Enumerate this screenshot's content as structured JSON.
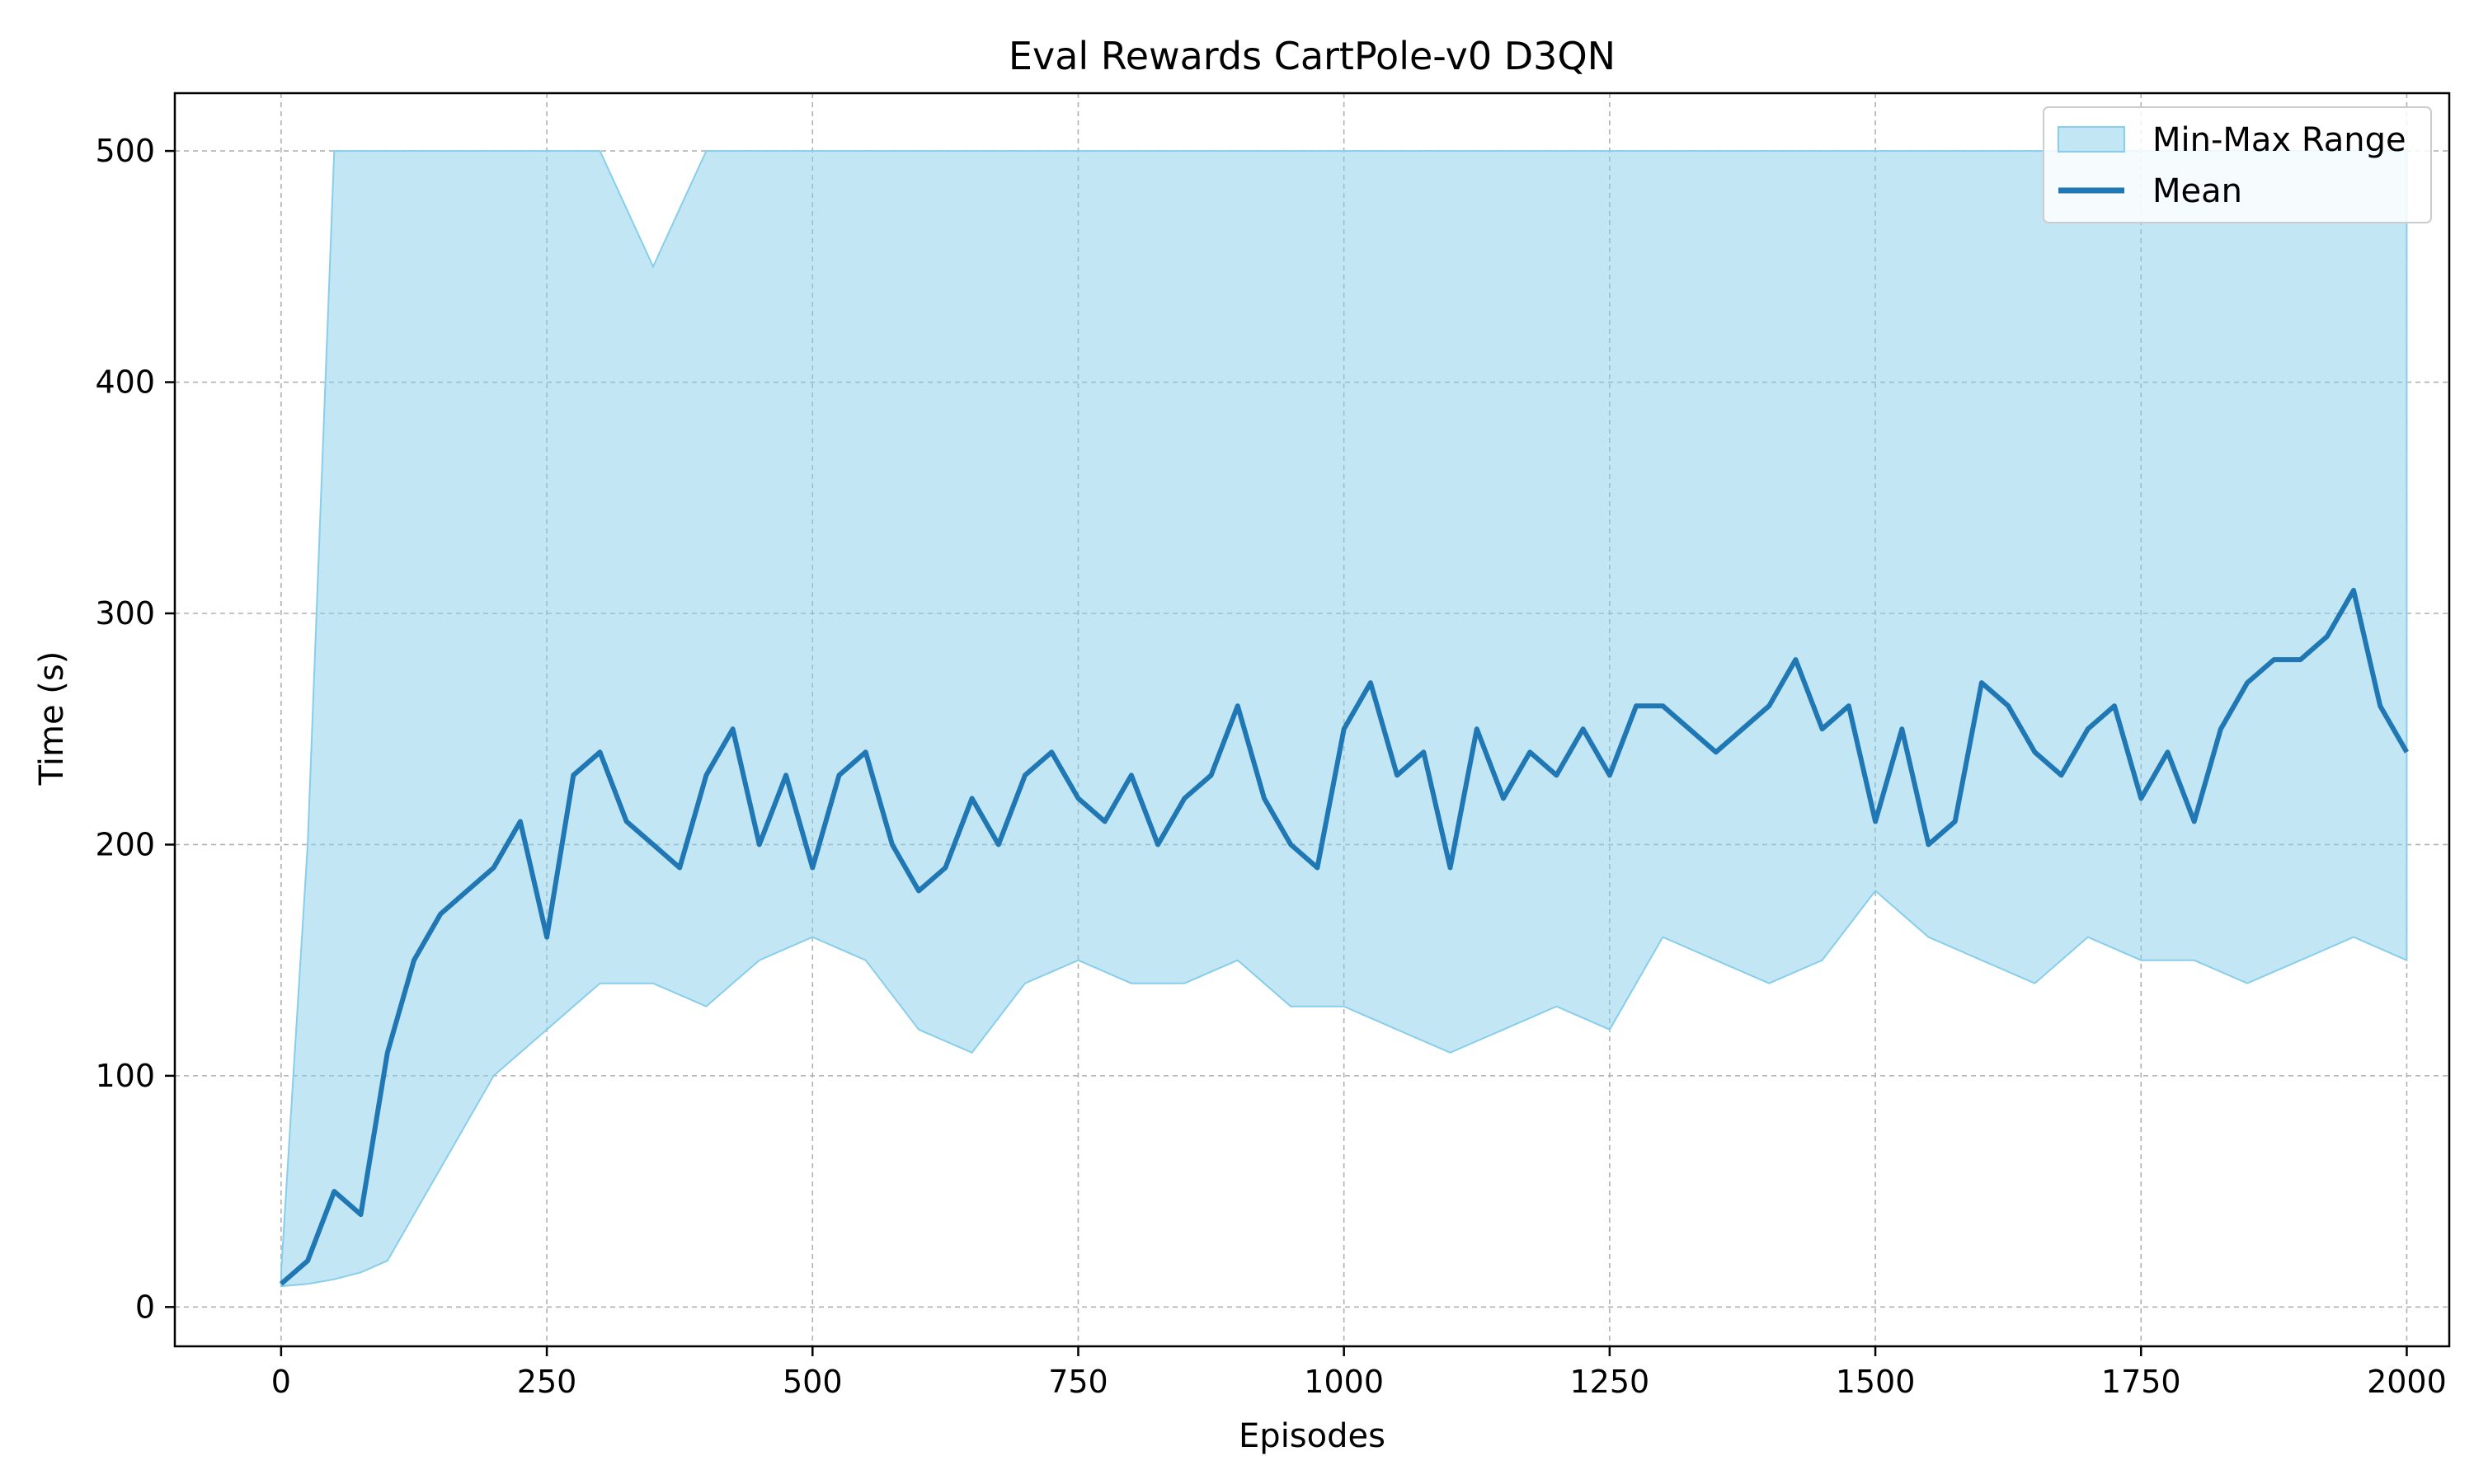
{
  "chart_data": {
    "type": "line",
    "title": "Eval Rewards CartPole-v0 D3QN",
    "xlabel": "Episodes",
    "ylabel": "Time (s)",
    "xlim": [
      -100,
      2040
    ],
    "ylim": [
      -17,
      525
    ],
    "xticks": [
      0,
      250,
      500,
      750,
      1000,
      1250,
      1500,
      1750,
      2000
    ],
    "yticks": [
      0,
      100,
      200,
      300,
      400,
      500
    ],
    "grid": true,
    "legend_position": "top-right",
    "colors": {
      "mean": "#1f77b4",
      "range_fill": "#87ceeb",
      "grid": "#b0b0b0"
    },
    "series": [
      {
        "name": "Min-Max Range",
        "kind": "band",
        "x": [
          0,
          25,
          50,
          75,
          100,
          125,
          150,
          175,
          200,
          250,
          300,
          350,
          400,
          450,
          500,
          550,
          600,
          650,
          700,
          750,
          800,
          850,
          900,
          950,
          1000,
          1050,
          1100,
          1150,
          1200,
          1250,
          1300,
          1350,
          1400,
          1450,
          1500,
          1550,
          1600,
          1650,
          1700,
          1750,
          1800,
          1850,
          1900,
          1950,
          2000
        ],
        "min": [
          9,
          10,
          12,
          15,
          20,
          40,
          60,
          80,
          100,
          120,
          140,
          140,
          130,
          150,
          160,
          150,
          120,
          110,
          140,
          150,
          140,
          140,
          150,
          130,
          130,
          120,
          110,
          120,
          130,
          120,
          160,
          150,
          140,
          150,
          180,
          160,
          150,
          140,
          160,
          150,
          150,
          140,
          150,
          160,
          150
        ],
        "max": [
          15,
          200,
          500,
          500,
          500,
          500,
          500,
          500,
          500,
          500,
          500,
          450,
          500,
          500,
          500,
          500,
          500,
          500,
          500,
          500,
          500,
          500,
          500,
          500,
          500,
          500,
          500,
          500,
          500,
          500,
          500,
          500,
          500,
          500,
          500,
          500,
          500,
          500,
          500,
          500,
          500,
          500,
          500,
          500,
          500
        ]
      },
      {
        "name": "Mean",
        "kind": "line",
        "x": [
          0,
          25,
          50,
          75,
          100,
          125,
          150,
          175,
          200,
          225,
          250,
          275,
          300,
          325,
          350,
          375,
          400,
          425,
          450,
          475,
          500,
          525,
          550,
          575,
          600,
          625,
          650,
          675,
          700,
          725,
          750,
          775,
          800,
          825,
          850,
          875,
          900,
          925,
          950,
          975,
          1000,
          1025,
          1050,
          1075,
          1100,
          1125,
          1150,
          1175,
          1200,
          1225,
          1250,
          1275,
          1300,
          1325,
          1350,
          1375,
          1400,
          1425,
          1450,
          1475,
          1500,
          1525,
          1550,
          1575,
          1600,
          1625,
          1650,
          1675,
          1700,
          1725,
          1750,
          1775,
          1800,
          1825,
          1850,
          1875,
          1900,
          1925,
          1950,
          1975,
          2000
        ],
        "y": [
          10,
          20,
          50,
          40,
          110,
          150,
          170,
          180,
          190,
          210,
          160,
          230,
          240,
          210,
          200,
          190,
          230,
          250,
          200,
          230,
          190,
          230,
          240,
          200,
          180,
          190,
          220,
          200,
          230,
          240,
          220,
          210,
          230,
          200,
          220,
          230,
          260,
          220,
          200,
          190,
          250,
          270,
          230,
          240,
          190,
          250,
          220,
          240,
          230,
          250,
          230,
          260,
          260,
          250,
          240,
          250,
          260,
          280,
          250,
          260,
          210,
          250,
          200,
          210,
          270,
          260,
          240,
          230,
          250,
          260,
          220,
          240,
          210,
          250,
          270,
          280,
          280,
          290,
          310,
          260,
          240
        ]
      }
    ]
  }
}
